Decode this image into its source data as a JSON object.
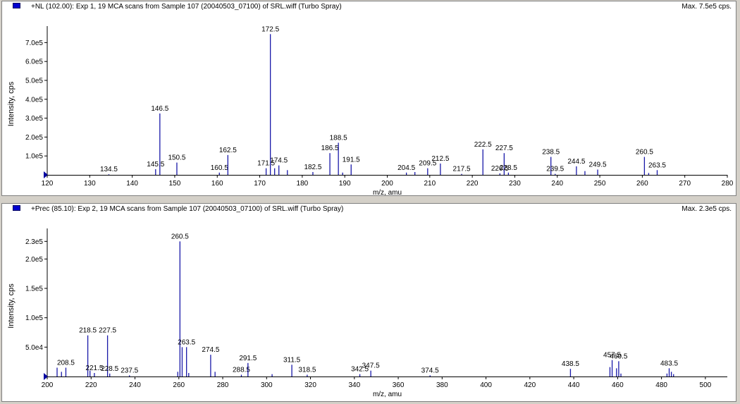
{
  "spectra": [
    {
      "title": "+NL (102.00): Exp 1, 19 MCA scans from Sample 107 (20040503_07100) of SRL.wiff (Turbo Spray)",
      "max_label": "Max. 7.5e5 cps."
    },
    {
      "title": "+Prec (85.10): Exp 2, 19 MCA scans from Sample 107 (20040503_07100) of SRL.wiff (Turbo Spray)",
      "max_label": "Max. 2.3e5 cps."
    }
  ],
  "chart_data": [
    {
      "type": "bar",
      "title": "+NL (102.00): Exp 1, 19 MCA scans from Sample 107 (20040503_07100) of SRL.wiff (Turbo Spray)",
      "xlabel": "m/z, amu",
      "ylabel": "Intensity, cps",
      "xlim": [
        120,
        280
      ],
      "ylim": [
        0,
        750000
      ],
      "xticks": [
        120,
        130,
        140,
        150,
        160,
        170,
        180,
        190,
        200,
        210,
        220,
        230,
        240,
        250,
        260,
        270,
        280
      ],
      "yticks": [
        {
          "value": 100000,
          "label": "1.0e5"
        },
        {
          "value": 200000,
          "label": "2.0e5"
        },
        {
          "value": 300000,
          "label": "3.0e5"
        },
        {
          "value": 400000,
          "label": "4.0e5"
        },
        {
          "value": 500000,
          "label": "5.0e5"
        },
        {
          "value": 600000,
          "label": "6.0e5"
        },
        {
          "value": 700000,
          "label": "7.0e5"
        }
      ],
      "peaks": [
        {
          "x": 134.5,
          "y": 3000,
          "label": "134.5"
        },
        {
          "x": 145.5,
          "y": 30000,
          "label": "145.5"
        },
        {
          "x": 146.5,
          "y": 325000,
          "label": "146.5"
        },
        {
          "x": 150.5,
          "y": 65000,
          "label": "150.5"
        },
        {
          "x": 160.5,
          "y": 12000,
          "label": "160.5"
        },
        {
          "x": 162.5,
          "y": 105000,
          "label": "162.5"
        },
        {
          "x": 171.5,
          "y": 35000,
          "label": "171.5"
        },
        {
          "x": 172.5,
          "y": 745000,
          "label": "172.5"
        },
        {
          "x": 173.5,
          "y": 35000
        },
        {
          "x": 174.5,
          "y": 50000,
          "label": "174.5"
        },
        {
          "x": 176.5,
          "y": 25000
        },
        {
          "x": 182.5,
          "y": 15000,
          "label": "182.5"
        },
        {
          "x": 186.5,
          "y": 115000,
          "label": "186.5"
        },
        {
          "x": 188.5,
          "y": 170000,
          "label": "188.5"
        },
        {
          "x": 189.5,
          "y": 12000
        },
        {
          "x": 191.5,
          "y": 55000,
          "label": "191.5"
        },
        {
          "x": 204.5,
          "y": 12000,
          "label": "204.5"
        },
        {
          "x": 206.5,
          "y": 15000
        },
        {
          "x": 209.5,
          "y": 35000,
          "label": "209.5"
        },
        {
          "x": 212.5,
          "y": 60000,
          "label": "212.5"
        },
        {
          "x": 217.5,
          "y": 5000,
          "label": "217.5"
        },
        {
          "x": 222.5,
          "y": 135000,
          "label": "222.5"
        },
        {
          "x": 226.5,
          "y": 8000,
          "label": "226.5"
        },
        {
          "x": 227.5,
          "y": 115000,
          "label": "227.5"
        },
        {
          "x": 228.5,
          "y": 12000,
          "label": "228.5"
        },
        {
          "x": 238.5,
          "y": 95000,
          "label": "238.5"
        },
        {
          "x": 239.5,
          "y": 5000,
          "label": "239.5"
        },
        {
          "x": 244.5,
          "y": 45000,
          "label": "244.5"
        },
        {
          "x": 246.5,
          "y": 20000
        },
        {
          "x": 249.5,
          "y": 28000,
          "label": "249.5"
        },
        {
          "x": 260.5,
          "y": 95000,
          "label": "260.5"
        },
        {
          "x": 261.5,
          "y": 10000
        },
        {
          "x": 263.5,
          "y": 25000,
          "label": "263.5"
        }
      ]
    },
    {
      "type": "bar",
      "title": "+Prec (85.10): Exp 2, 19 MCA scans from Sample 107 (20040503_07100) of SRL.wiff (Turbo Spray)",
      "xlabel": "m/z, amu",
      "ylabel": "Intensity, cps",
      "xlim": [
        200,
        510
      ],
      "ylim": [
        0,
        240000
      ],
      "xticks": [
        200,
        220,
        240,
        260,
        280,
        300,
        320,
        340,
        360,
        380,
        400,
        420,
        440,
        460,
        480,
        500
      ],
      "yticks": [
        {
          "value": 50000,
          "label": "5.0e4"
        },
        {
          "value": 100000,
          "label": "1.0e5"
        },
        {
          "value": 150000,
          "label": "1.5e5"
        },
        {
          "value": 200000,
          "label": "2.0e5"
        },
        {
          "value": 230000,
          "label": "2.3e5"
        }
      ],
      "peaks": [
        {
          "x": 204.5,
          "y": 15000
        },
        {
          "x": 206.5,
          "y": 8000
        },
        {
          "x": 208.5,
          "y": 15000,
          "label": "208.5"
        },
        {
          "x": 218.5,
          "y": 70000,
          "label": "218.5"
        },
        {
          "x": 219.5,
          "y": 10000
        },
        {
          "x": 221.5,
          "y": 6000,
          "label": "221.5"
        },
        {
          "x": 227.5,
          "y": 70000,
          "label": "227.5"
        },
        {
          "x": 228.5,
          "y": 5000,
          "label": "228.5"
        },
        {
          "x": 237.5,
          "y": 2000,
          "label": "237.5"
        },
        {
          "x": 259.5,
          "y": 8000
        },
        {
          "x": 260.5,
          "y": 230000,
          "label": "260.5"
        },
        {
          "x": 261.5,
          "y": 50000
        },
        {
          "x": 263.5,
          "y": 50000,
          "label": "263.5"
        },
        {
          "x": 264.5,
          "y": 6000
        },
        {
          "x": 274.5,
          "y": 37000,
          "label": "274.5"
        },
        {
          "x": 276.5,
          "y": 8000
        },
        {
          "x": 288.5,
          "y": 3000,
          "label": "288.5"
        },
        {
          "x": 291.5,
          "y": 23000,
          "label": "291.5"
        },
        {
          "x": 302.5,
          "y": 4000
        },
        {
          "x": 311.5,
          "y": 20000,
          "label": "311.5"
        },
        {
          "x": 318.5,
          "y": 3000,
          "label": "318.5"
        },
        {
          "x": 342.5,
          "y": 4000,
          "label": "342.5"
        },
        {
          "x": 347.5,
          "y": 10000,
          "label": "347.5"
        },
        {
          "x": 374.5,
          "y": 2000,
          "label": "374.5"
        },
        {
          "x": 438.5,
          "y": 13000,
          "label": "438.5"
        },
        {
          "x": 456.5,
          "y": 16000
        },
        {
          "x": 457.5,
          "y": 28000,
          "label": "457.5"
        },
        {
          "x": 459.5,
          "y": 14000
        },
        {
          "x": 460.5,
          "y": 26000,
          "label": "460.5"
        },
        {
          "x": 461.5,
          "y": 5000
        },
        {
          "x": 482.5,
          "y": 5000
        },
        {
          "x": 483.5,
          "y": 14000,
          "label": "483.5"
        },
        {
          "x": 484.5,
          "y": 8000
        },
        {
          "x": 485.5,
          "y": 4000
        }
      ]
    }
  ]
}
